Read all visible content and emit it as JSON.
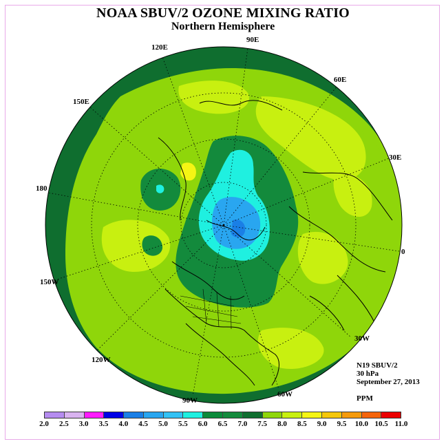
{
  "header": {
    "title": "NOAA SBUV/2 OZONE MIXING RATIO",
    "subtitle": "Northern Hemisphere"
  },
  "map": {
    "projection": "polar stereographic",
    "longitude_labels": [
      "90E",
      "60E",
      "30E",
      "0",
      "30W",
      "60W",
      "90W",
      "120W",
      "150W",
      "180",
      "150E",
      "120E"
    ],
    "regions": {
      "outer_ring": "6.5-7.0",
      "mid_latitudes": "7.5-8.0",
      "polar_cap": "5.0-6.0",
      "polar_center": "4.5-5.0"
    }
  },
  "info": {
    "instrument": "N19 SBUV/2",
    "level": "30 hPa",
    "date": "September 27, 2013",
    "unit": "PPM"
  },
  "colorbar": {
    "ticks": [
      "2.0",
      "2.5",
      "3.0",
      "3.5",
      "4.0",
      "4.5",
      "5.0",
      "5.5",
      "6.0",
      "6.5",
      "7.0",
      "7.5",
      "8.0",
      "8.5",
      "9.0",
      "9.5",
      "10.0",
      "10.5",
      "11.0"
    ],
    "colors": [
      "#b58cf0",
      "#d9b3f0",
      "#ff1aff",
      "#0000e6",
      "#1a7fe6",
      "#29a6f0",
      "#33c2f5",
      "#1ff0e0",
      "#0a8a3a",
      "#138a3c",
      "#0f6e2f",
      "#8fd60a",
      "#c8f010",
      "#f5f514",
      "#f5c70a",
      "#f59a0a",
      "#f5640a",
      "#eb0000",
      "#8a5a3a"
    ]
  }
}
